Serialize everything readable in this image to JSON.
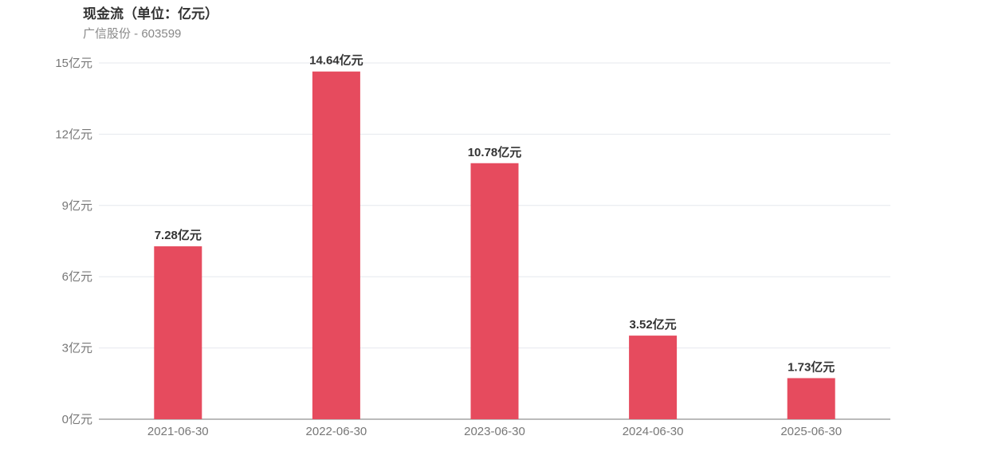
{
  "chart_data": {
    "type": "bar",
    "title": "现金流（单位：亿元）",
    "subtitle": "广信股份 - 603599",
    "categories": [
      "2021-06-30",
      "2022-06-30",
      "2023-06-30",
      "2024-06-30",
      "2025-06-30"
    ],
    "values": [
      7.28,
      14.64,
      10.78,
      3.52,
      1.73
    ],
    "data_labels": [
      "7.28亿元",
      "14.64亿元",
      "10.78亿元",
      "3.52亿元",
      "1.73亿元"
    ],
    "ylim": [
      0,
      15
    ],
    "yticks": [
      0,
      3,
      6,
      9,
      12,
      15
    ],
    "ytick_labels": [
      "0亿元",
      "3亿元",
      "6亿元",
      "9亿元",
      "12亿元",
      "15亿元"
    ],
    "grid": true,
    "bar_color": "#e64b5e",
    "xlabel": "",
    "ylabel": ""
  }
}
